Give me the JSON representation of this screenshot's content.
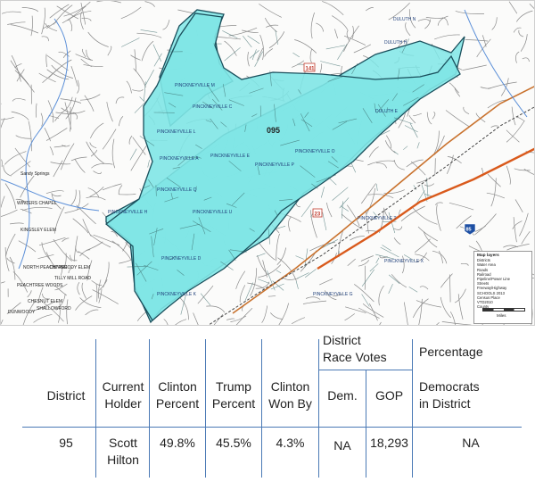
{
  "map": {
    "district_label": "095",
    "precinct_labels": [
      "PINCKNEYVILLE M",
      "PINCKNEYVILLE C",
      "PINCKNEYVILLE L",
      "PINCKNEYVILLE A",
      "PINCKNEYVILLE E",
      "PINCKNEYVILLE P",
      "PINCKNEYVILLE O",
      "PINCKNEYVILLE Q",
      "PINCKNEYVILLE U",
      "PINCKNEYVILLE H",
      "PINCKNEYVILLE D",
      "PINCKNEYVILLE K",
      "PINCKNEYVILLE T",
      "PINCKNEYVILLE X",
      "PINCKNEYVILLE G",
      "DULUTH E",
      "DULUTH H",
      "DULUTH N"
    ],
    "outside_labels": [
      "Sandy Springs",
      "WINTERS CHAPEL",
      "NORTH PEACHTREE",
      "KINGSLEY ELEM",
      "PEACHTREE WOODS",
      "TILLY MILL ROAD",
      "DUNWOODY ELEM",
      "CHESNUT ELEM",
      "DUNWOODY",
      "SHALLOWFORD"
    ],
    "route_labels": [
      "141",
      "23",
      "85"
    ],
    "legend_title": "Map layers",
    "legend_items": [
      "Districts",
      "Water Area",
      "Roads",
      "Railroad",
      "Pipeline/Power Line",
      "Streets",
      "Freeway/Highway",
      "SCHOOLS 2013",
      "Census Place",
      "VTD2010",
      "County"
    ],
    "scale_label": "Miles"
  },
  "table": {
    "headers": {
      "district": "District",
      "holder": [
        "Current",
        "Holder"
      ],
      "clinton_pct": [
        "Clinton",
        "Percent"
      ],
      "trump_pct": [
        "Trump",
        "Percent"
      ],
      "won_by": [
        "Clinton",
        "Won By"
      ],
      "race_votes": [
        "District",
        "Race Votes"
      ],
      "dem": "Dem.",
      "gop": "GOP",
      "pct_dem": [
        "Percentage",
        "Democrats",
        "in District"
      ]
    },
    "row": {
      "district": "95",
      "holder": [
        "Scott",
        "Hilton"
      ],
      "clinton_pct": "49.8%",
      "trump_pct": "45.5%",
      "won_by": "4.3%",
      "dem": "NA",
      "gop": "18,293",
      "pct_dem": "NA"
    }
  },
  "colors": {
    "district_fill": "#7fe6e6",
    "district_stroke": "#1a4f5c",
    "water": "#5b8fd8",
    "highway": "#d95a1c",
    "table_line": "#4a79b5"
  }
}
